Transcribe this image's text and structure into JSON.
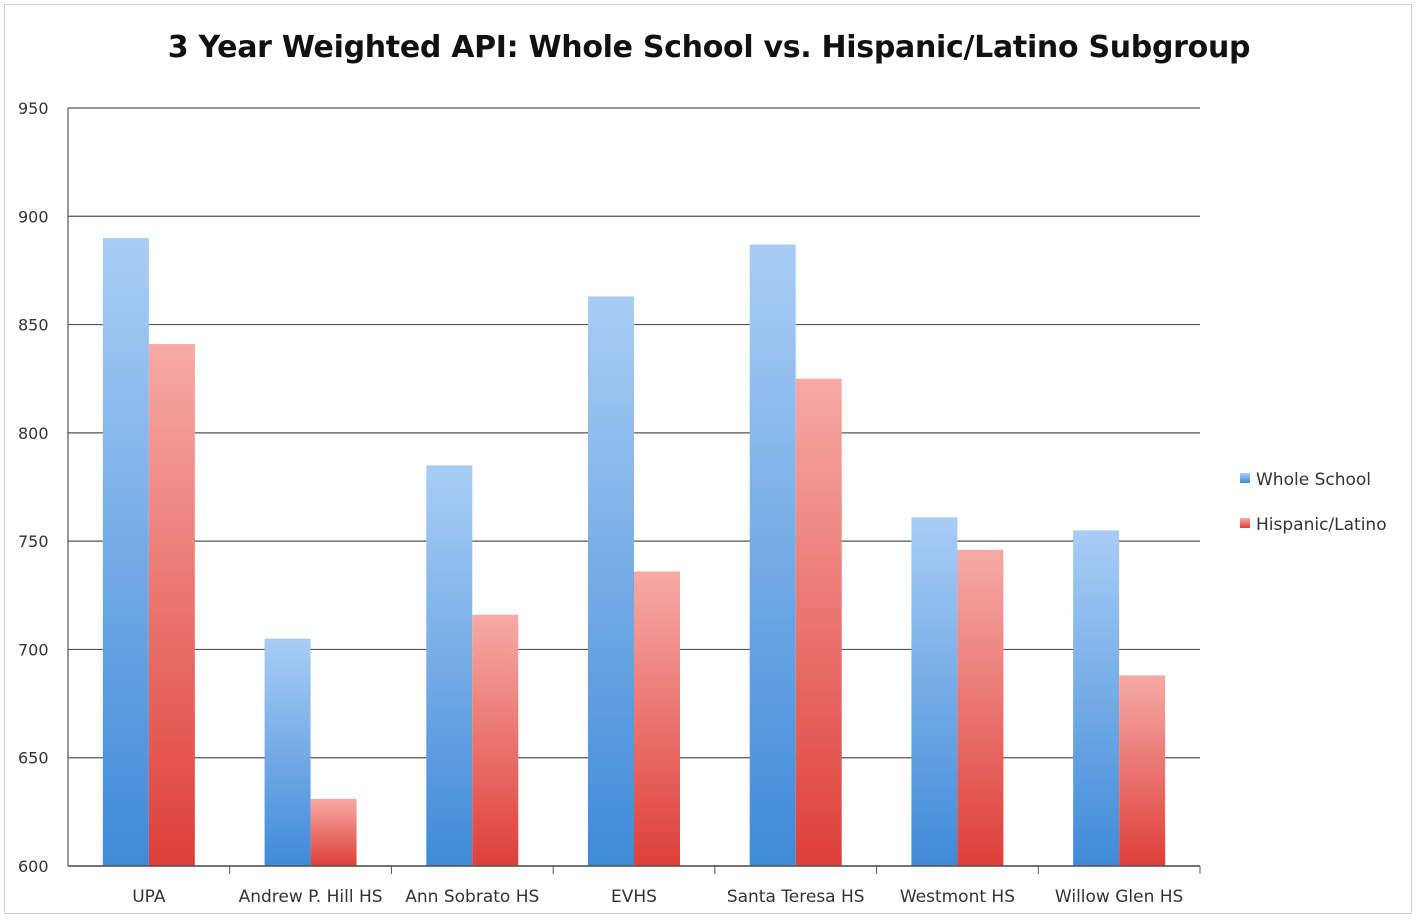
{
  "chart_data": {
    "type": "bar",
    "title": "3 Year Weighted API: Whole School vs. Hispanic/Latino Subgroup",
    "xlabel": "",
    "ylabel": "",
    "ylim": [
      600,
      950
    ],
    "yticks": [
      600,
      650,
      700,
      750,
      800,
      850,
      900,
      950
    ],
    "grid": true,
    "legend_position": "right",
    "categories": [
      "UPA",
      "Andrew P. Hill HS",
      "Ann Sobrato HS",
      "EVHS",
      "Santa Teresa HS",
      "Westmont HS",
      "Willow Glen HS"
    ],
    "series": [
      {
        "name": "Whole School",
        "color": "#4a90d9",
        "values": [
          890,
          705,
          785,
          863,
          887,
          761,
          755
        ]
      },
      {
        "name": "Hispanic/Latino",
        "color": "#e04a45",
        "values": [
          841,
          631,
          716,
          736,
          825,
          746,
          688
        ]
      }
    ]
  }
}
